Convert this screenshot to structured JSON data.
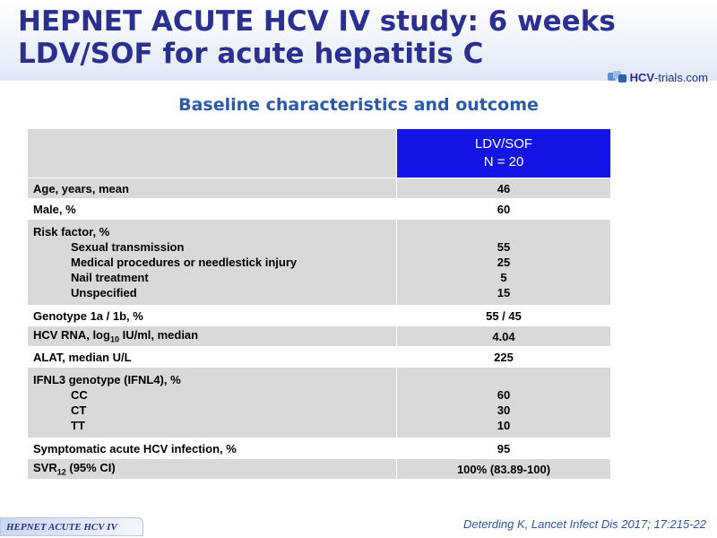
{
  "title_line1": "HEPNET ACUTE HCV IV study: 6 weeks",
  "title_line2": "LDV/SOF for acute hepatitis C",
  "logo": {
    "prefix": "HCV",
    "suffix": "-trials.com"
  },
  "subtitle": "Baseline characteristics and outcome",
  "table": {
    "column_header_line1": "LDV/SOF",
    "column_header_line2": "N = 20",
    "rows": {
      "age": {
        "label": "Age, years, mean",
        "value": "46"
      },
      "male": {
        "label": "Male, %",
        "value": "60"
      },
      "risk": {
        "label": "Risk factor, %",
        "items": [
          {
            "label": "Sexual transmission",
            "value": "55"
          },
          {
            "label": "Medical procedures or needlestick injury",
            "value": "25"
          },
          {
            "label": "Nail treatment",
            "value": "5"
          },
          {
            "label": "Unspecified",
            "value": "15"
          }
        ]
      },
      "genotype": {
        "label": "Genotype 1a / 1b, %",
        "value": "55 / 45"
      },
      "hcv_rna": {
        "label_pre": "HCV RNA, log",
        "label_sub": "10",
        "label_post": " IU/ml, median",
        "value": "4.04"
      },
      "alat": {
        "label": "ALAT, median U/L",
        "value": "225"
      },
      "ifnl3": {
        "label": "IFNL3 genotype (IFNL4), %",
        "items": [
          {
            "label": "CC",
            "value": "60"
          },
          {
            "label": "CT",
            "value": "30"
          },
          {
            "label": "TT",
            "value": "10"
          }
        ]
      },
      "symptomatic": {
        "label": "Symptomatic acute HCV infection, %",
        "value": "95"
      },
      "svr": {
        "label_pre": "SVR",
        "label_sub": "12",
        "label_post": " (95% CI)",
        "value": "100% (83.89-100)"
      }
    }
  },
  "footer_tag": "HEPNET ACUTE HCV IV",
  "citation": "Deterding K, Lancet Infect Dis 2017; 17:215-22"
}
